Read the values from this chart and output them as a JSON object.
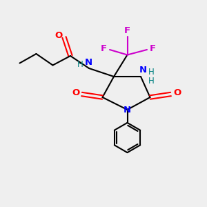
{
  "bg_color": "#efefef",
  "bond_color": "#000000",
  "N_color": "#0000ff",
  "O_color": "#ff0000",
  "F_color": "#cc00cc",
  "H_color": "#008080",
  "figsize": [
    3.0,
    3.0
  ],
  "dpi": 100,
  "xlim": [
    0,
    10
  ],
  "ylim": [
    0,
    10
  ]
}
